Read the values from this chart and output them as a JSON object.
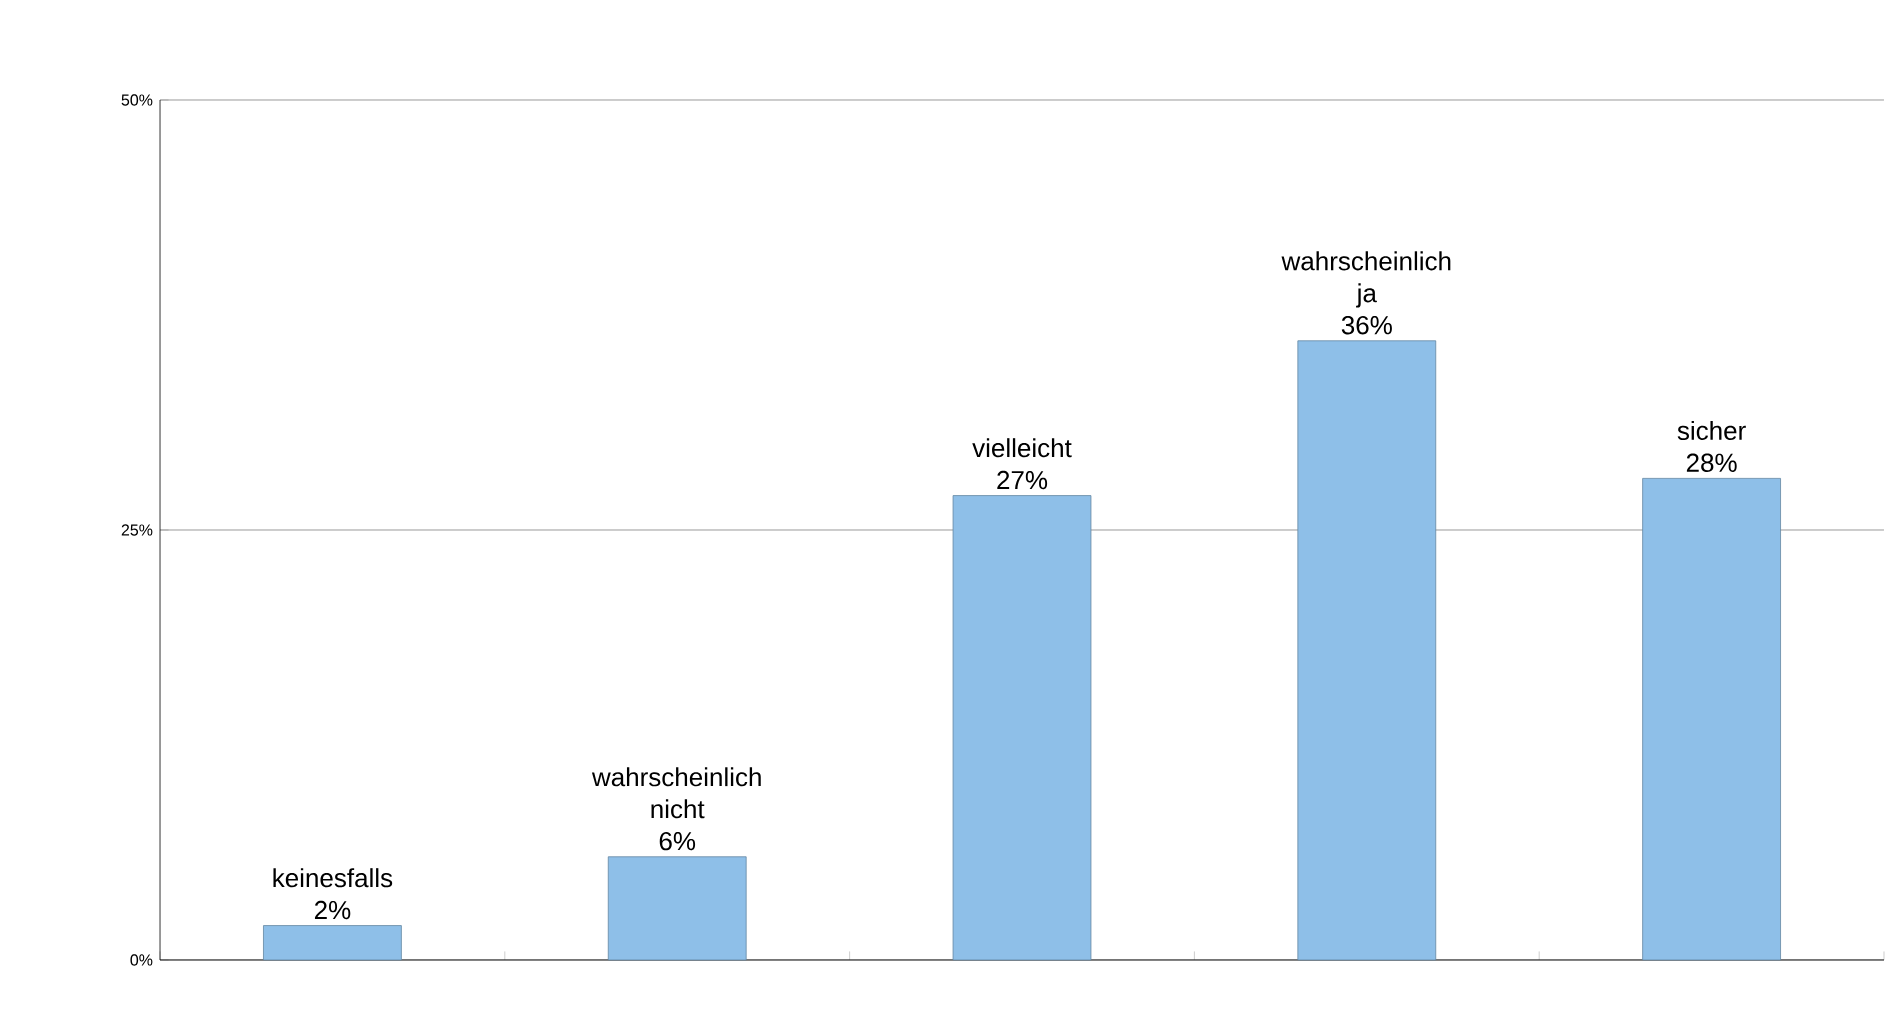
{
  "chart_data": {
    "type": "bar",
    "categories": [
      "keinesfalls",
      "wahrscheinlich nicht",
      "vielleicht",
      "wahrscheinlich ja",
      "sicher"
    ],
    "values": [
      2,
      6,
      27,
      36,
      28
    ],
    "value_labels": [
      "2%",
      "6%",
      "27%",
      "36%",
      "28%"
    ],
    "color": "#8ebfe8",
    "ylim": [
      0,
      50
    ],
    "yticks": [
      {
        "value": 0,
        "label": "0%"
      },
      {
        "value": 25,
        "label": "25%"
      },
      {
        "value": 50,
        "label": "50%"
      }
    ],
    "grid": "y"
  }
}
